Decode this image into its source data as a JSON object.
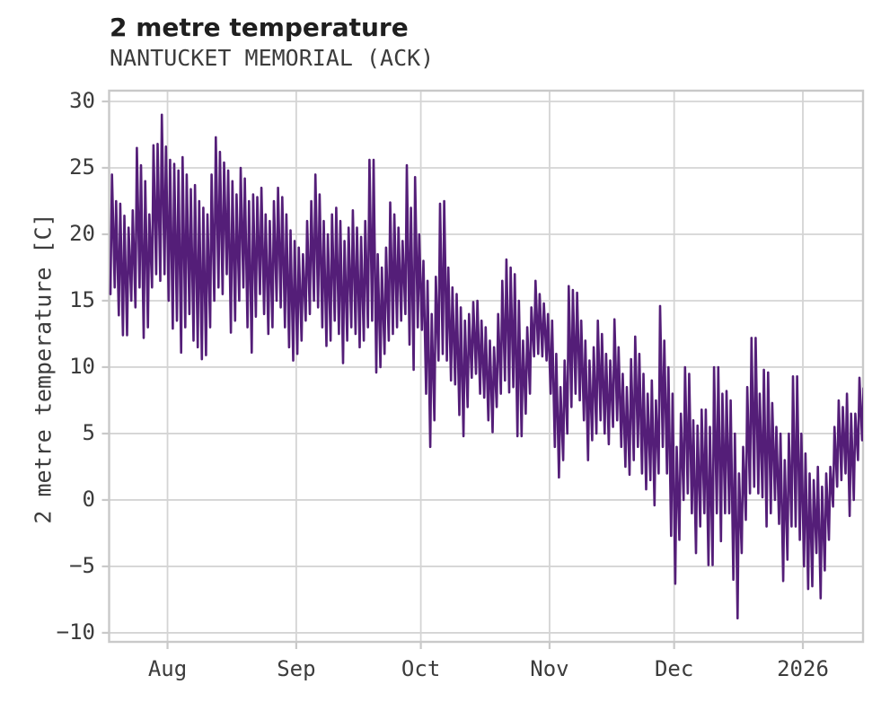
{
  "chart_data": {
    "type": "line",
    "title": "2 metre temperature",
    "subtitle": "NANTUCKET MEMORIAL (ACK)",
    "ylabel": "2 metre temperature [C]",
    "xlabel": "",
    "grid": true,
    "legend_position": "none",
    "line_color": "#541e78",
    "grid_color": "#d4d4d4",
    "spine_color": "#c9c9c9",
    "ylim": [
      -10.68,
      30.81
    ],
    "y_ticks": [
      {
        "label": "30",
        "value": 30
      },
      {
        "label": "25",
        "value": 25
      },
      {
        "label": "20",
        "value": 20
      },
      {
        "label": "15",
        "value": 15
      },
      {
        "label": "10",
        "value": 10
      },
      {
        "label": "5",
        "value": 5
      },
      {
        "label": "0",
        "value": 0
      },
      {
        "label": "−5",
        "value": -5
      },
      {
        "label": "−10",
        "value": -10
      }
    ],
    "x_start_date": "2025-07-18",
    "x_end_date": "2026-01-15",
    "x_ticks": [
      {
        "label": "Aug",
        "day": 14
      },
      {
        "label": "Sep",
        "day": 45
      },
      {
        "label": "Oct",
        "day": 75
      },
      {
        "label": "Nov",
        "day": 106
      },
      {
        "label": "Dec",
        "day": 136
      },
      {
        "label": "2026",
        "day": 167
      }
    ],
    "sampling_note": "daily [min,max] temperature in C, estimated from the hourly trace; day 0 = 2025-07-18",
    "daily_min_max": [
      [
        15.5,
        24.5
      ],
      [
        16,
        22.5
      ],
      [
        13.9,
        22.3
      ],
      [
        12.4,
        21.4
      ],
      [
        12.4,
        20.5
      ],
      [
        15,
        21.8
      ],
      [
        14.5,
        26.5
      ],
      [
        16,
        25.2
      ],
      [
        12.2,
        24
      ],
      [
        13,
        21.5
      ],
      [
        16,
        26.7
      ],
      [
        17,
        26.8
      ],
      [
        16.5,
        29
      ],
      [
        17,
        26.6
      ],
      [
        15,
        25.6
      ],
      [
        12.9,
        25.3
      ],
      [
        13.5,
        24.8
      ],
      [
        11.1,
        25.8
      ],
      [
        13,
        24.5
      ],
      [
        14,
        23.4
      ],
      [
        12,
        23.7
      ],
      [
        11.5,
        22.5
      ],
      [
        10.6,
        22
      ],
      [
        10.9,
        21.5
      ],
      [
        13,
        24.5
      ],
      [
        15,
        27.3
      ],
      [
        16,
        26.2
      ],
      [
        15.5,
        25.4
      ],
      [
        17,
        24.8
      ],
      [
        12.6,
        24
      ],
      [
        13.5,
        23
      ],
      [
        15,
        25
      ],
      [
        16,
        24.2
      ],
      [
        13,
        22.5
      ],
      [
        11.1,
        23
      ],
      [
        13.8,
        22.8
      ],
      [
        15.5,
        23.5
      ],
      [
        14,
        21.5
      ],
      [
        12.5,
        21
      ],
      [
        13,
        22.5
      ],
      [
        15,
        23.5
      ],
      [
        14.5,
        22.8
      ],
      [
        13,
        21.5
      ],
      [
        11.5,
        20.3
      ],
      [
        10.5,
        19.5
      ],
      [
        11,
        19
      ],
      [
        12,
        18.5
      ],
      [
        13.5,
        21
      ],
      [
        14,
        22.5
      ],
      [
        15,
        24.5
      ],
      [
        14.5,
        23
      ],
      [
        13,
        21
      ],
      [
        11.6,
        20
      ],
      [
        12,
        21.5
      ],
      [
        13.5,
        22
      ],
      [
        12.5,
        21
      ],
      [
        10.3,
        19.5
      ],
      [
        12,
        20.5
      ],
      [
        13,
        21.8
      ],
      [
        12.5,
        20.5
      ],
      [
        11.5,
        19.8
      ],
      [
        12,
        21
      ],
      [
        13,
        25.6
      ],
      [
        13.5,
        25.6
      ],
      [
        9.6,
        18.5
      ],
      [
        10,
        17.5
      ],
      [
        11,
        19
      ],
      [
        12,
        22.4
      ],
      [
        12.5,
        21.5
      ],
      [
        13,
        20.5
      ],
      [
        13.5,
        19.5
      ],
      [
        14,
        25.2
      ],
      [
        11.7,
        22
      ],
      [
        9.8,
        24.3
      ],
      [
        13,
        20
      ],
      [
        12.8,
        18
      ],
      [
        8,
        16.5
      ],
      [
        4,
        14
      ],
      [
        6,
        16.8
      ],
      [
        10.5,
        22.3
      ],
      [
        11,
        22.5
      ],
      [
        10.5,
        17.5
      ],
      [
        9,
        16
      ],
      [
        8.7,
        15.5
      ],
      [
        6.4,
        14.5
      ],
      [
        4.8,
        13.5
      ],
      [
        7,
        14
      ],
      [
        9.2,
        14.9
      ],
      [
        9.5,
        15
      ],
      [
        8,
        13.5
      ],
      [
        7.7,
        13
      ],
      [
        6,
        12
      ],
      [
        5.1,
        11.5
      ],
      [
        7,
        14
      ],
      [
        8,
        16.5
      ],
      [
        9,
        18.1
      ],
      [
        8.1,
        17.5
      ],
      [
        8.5,
        17
      ],
      [
        4.8,
        15
      ],
      [
        4.8,
        12
      ],
      [
        6.5,
        13
      ],
      [
        8,
        14.5
      ],
      [
        10.8,
        16.5
      ],
      [
        11,
        15.5
      ],
      [
        10.8,
        14.8
      ],
      [
        10.5,
        14
      ],
      [
        8,
        13.5
      ],
      [
        4,
        11
      ],
      [
        1.7,
        8.5
      ],
      [
        3,
        10.5
      ],
      [
        5,
        16.1
      ],
      [
        7,
        15.8
      ],
      [
        8,
        15.6
      ],
      [
        7.5,
        13.5
      ],
      [
        6,
        12
      ],
      [
        3,
        10.5
      ],
      [
        4.5,
        11.5
      ],
      [
        5,
        13.5
      ],
      [
        6,
        12.5
      ],
      [
        5,
        11
      ],
      [
        4.2,
        10.5
      ],
      [
        5.5,
        13.6
      ],
      [
        6,
        11.5
      ],
      [
        4,
        9.5
      ],
      [
        2.5,
        8.5
      ],
      [
        1.9,
        10.6
      ],
      [
        3,
        12.3
      ],
      [
        4,
        11
      ],
      [
        2,
        9.5
      ],
      [
        0.8,
        8
      ],
      [
        1.5,
        9
      ],
      [
        -0.4,
        7.5
      ],
      [
        2,
        14.6
      ],
      [
        4,
        12
      ],
      [
        2,
        10
      ],
      [
        -2.7,
        8
      ],
      [
        -6.3,
        4
      ],
      [
        -3,
        6.5
      ],
      [
        0,
        10
      ],
      [
        0.5,
        9.5
      ],
      [
        -1,
        6
      ],
      [
        -4,
        5.6
      ],
      [
        -2,
        6.8
      ],
      [
        -1,
        6.8
      ],
      [
        -4.9,
        5.5
      ],
      [
        -4.9,
        10
      ],
      [
        -1,
        10
      ],
      [
        -3.1,
        8
      ],
      [
        -1,
        8.2
      ],
      [
        -1,
        7.5
      ],
      [
        -6,
        5
      ],
      [
        -8.9,
        2
      ],
      [
        -4,
        4
      ],
      [
        -1.5,
        8.5
      ],
      [
        0.5,
        12.2
      ],
      [
        1,
        12.2
      ],
      [
        0.5,
        8
      ],
      [
        0.2,
        9.8
      ],
      [
        -2,
        9.6
      ],
      [
        -1,
        7.3
      ],
      [
        0,
        5.5
      ],
      [
        -1.8,
        5
      ],
      [
        -6.1,
        3
      ],
      [
        -4.5,
        5
      ],
      [
        -2,
        9.3
      ],
      [
        -2,
        9.3
      ],
      [
        -3,
        5
      ],
      [
        -5,
        3.5
      ],
      [
        -6.7,
        2
      ],
      [
        -6.5,
        1.5
      ],
      [
        -4,
        2.5
      ],
      [
        -7.4,
        1
      ],
      [
        -5.3,
        2
      ],
      [
        -3,
        2.5
      ],
      [
        -0.5,
        5.5
      ],
      [
        1,
        7.5
      ],
      [
        1.5,
        7
      ],
      [
        2,
        8
      ],
      [
        -1.2,
        6.5
      ],
      [
        0,
        6.5
      ],
      [
        3,
        9.2
      ],
      [
        4.5,
        8.4
      ]
    ]
  }
}
